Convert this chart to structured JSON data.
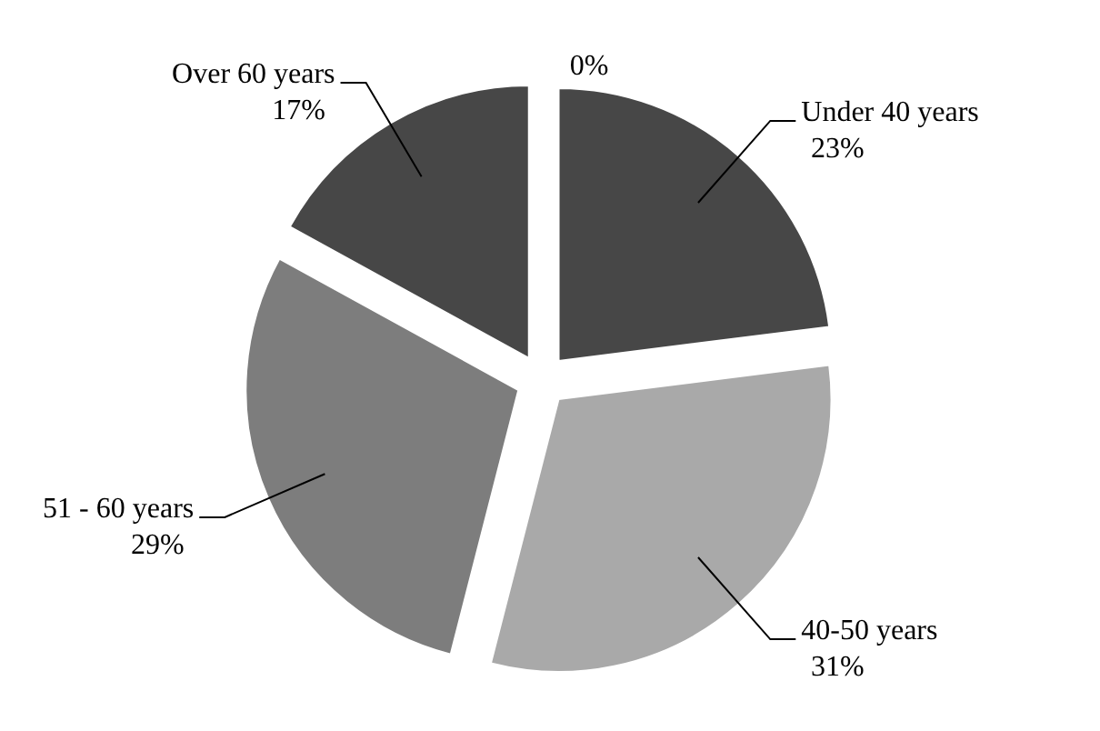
{
  "chart_data": {
    "type": "pie",
    "categories": [
      "Under 40 years",
      "40-50 years",
      "51 - 60 years",
      "Over 60 years",
      null
    ],
    "values": [
      23,
      31,
      29,
      17,
      0
    ],
    "value_labels": [
      "23%",
      "31%",
      "29%",
      "17%",
      "0%"
    ],
    "colors": [
      "#474747",
      "#a9a9a9",
      "#7d7d7d",
      "#474747",
      "#474747"
    ],
    "legend": false
  }
}
